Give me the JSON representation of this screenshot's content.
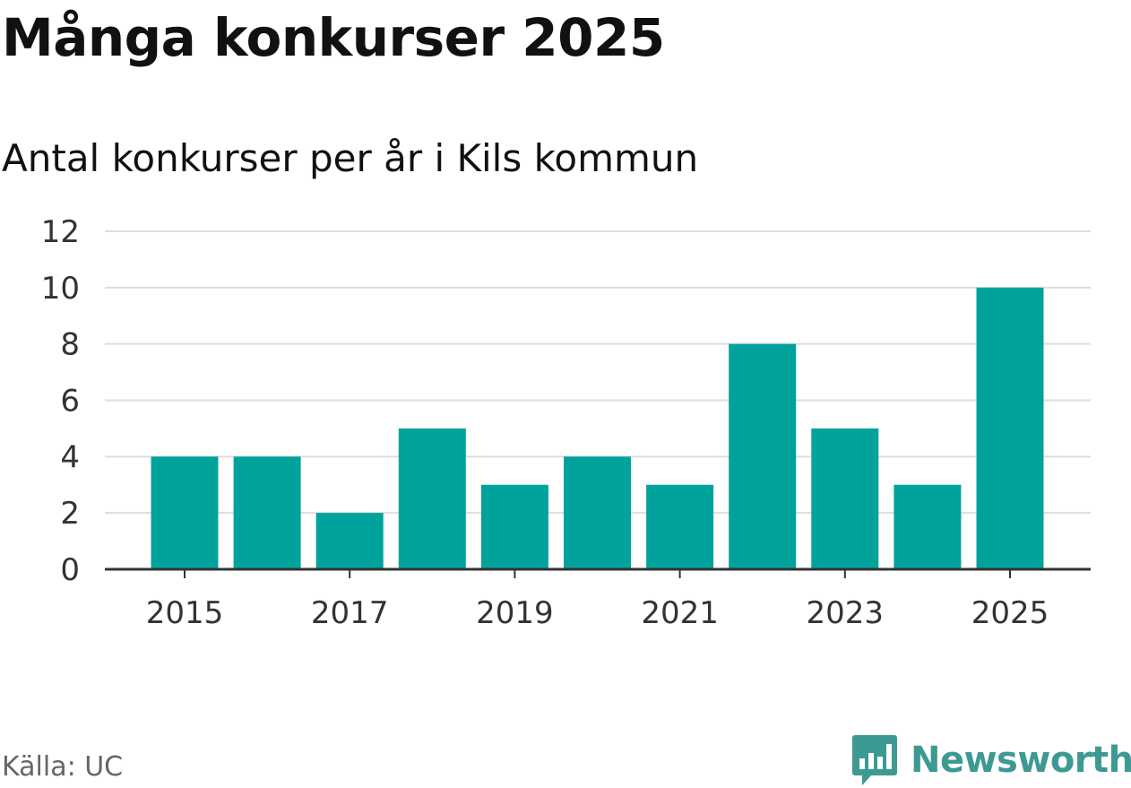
{
  "header": {
    "title": "Många konkurser 2025",
    "subtitle": "Antal konkurser per år i Kils kommun"
  },
  "footer": {
    "source": "Källa: UC",
    "brand_name": "Newsworthy",
    "brand_icon": "newsworthy-logo-icon"
  },
  "colors": {
    "bar": "#00a39b",
    "grid": "#dddddd",
    "axis": "#333333",
    "brand": "#3c9a93"
  },
  "chart_data": {
    "type": "bar",
    "title": "Många konkurser 2025",
    "subtitle": "Antal konkurser per år i Kils kommun",
    "categories": [
      "2015",
      "2016",
      "2017",
      "2018",
      "2019",
      "2020",
      "2021",
      "2022",
      "2023",
      "2024",
      "2025"
    ],
    "values": [
      4,
      4,
      2,
      5,
      3,
      4,
      3,
      8,
      5,
      3,
      10
    ],
    "x_tick_labels": [
      "2015",
      "2017",
      "2019",
      "2021",
      "2023",
      "2025"
    ],
    "y_ticks": [
      0,
      2,
      4,
      6,
      8,
      10,
      12
    ],
    "ylim": [
      0,
      12
    ],
    "xlabel": "",
    "ylabel": "",
    "grid": true,
    "legend": "none"
  }
}
